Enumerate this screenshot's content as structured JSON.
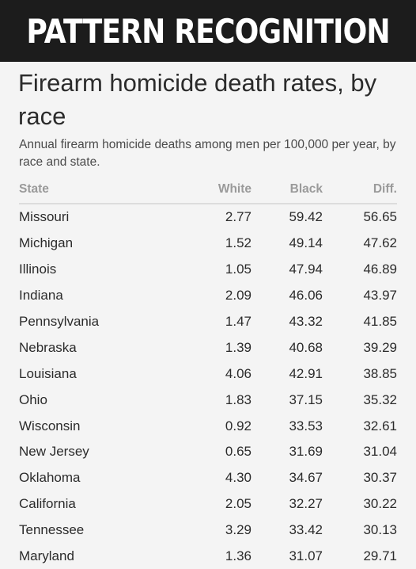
{
  "banner": {
    "text": "PATTERN RECOGNITION"
  },
  "chart_data": {
    "type": "table",
    "title": "Firearm homicide death rates, by race",
    "subtitle": "Annual firearm homicide deaths among men per 100,000 per year, by race and state.",
    "columns": [
      "State",
      "White",
      "Black",
      "Diff."
    ],
    "rows": [
      [
        "Missouri",
        "2.77",
        "59.42",
        "56.65"
      ],
      [
        "Michigan",
        "1.52",
        "49.14",
        "47.62"
      ],
      [
        "Illinois",
        "1.05",
        "47.94",
        "46.89"
      ],
      [
        "Indiana",
        "2.09",
        "46.06",
        "43.97"
      ],
      [
        "Pennsylvania",
        "1.47",
        "43.32",
        "41.85"
      ],
      [
        "Nebraska",
        "1.39",
        "40.68",
        "39.29"
      ],
      [
        "Louisiana",
        "4.06",
        "42.91",
        "38.85"
      ],
      [
        "Ohio",
        "1.83",
        "37.15",
        "35.32"
      ],
      [
        "Wisconsin",
        "0.92",
        "33.53",
        "32.61"
      ],
      [
        "New Jersey",
        "0.65",
        "31.69",
        "31.04"
      ],
      [
        "Oklahoma",
        "4.30",
        "34.67",
        "30.37"
      ],
      [
        "California",
        "2.05",
        "32.27",
        "30.22"
      ],
      [
        "Tennessee",
        "3.29",
        "33.42",
        "30.13"
      ],
      [
        "Maryland",
        "1.36",
        "31.07",
        "29.71"
      ]
    ]
  }
}
